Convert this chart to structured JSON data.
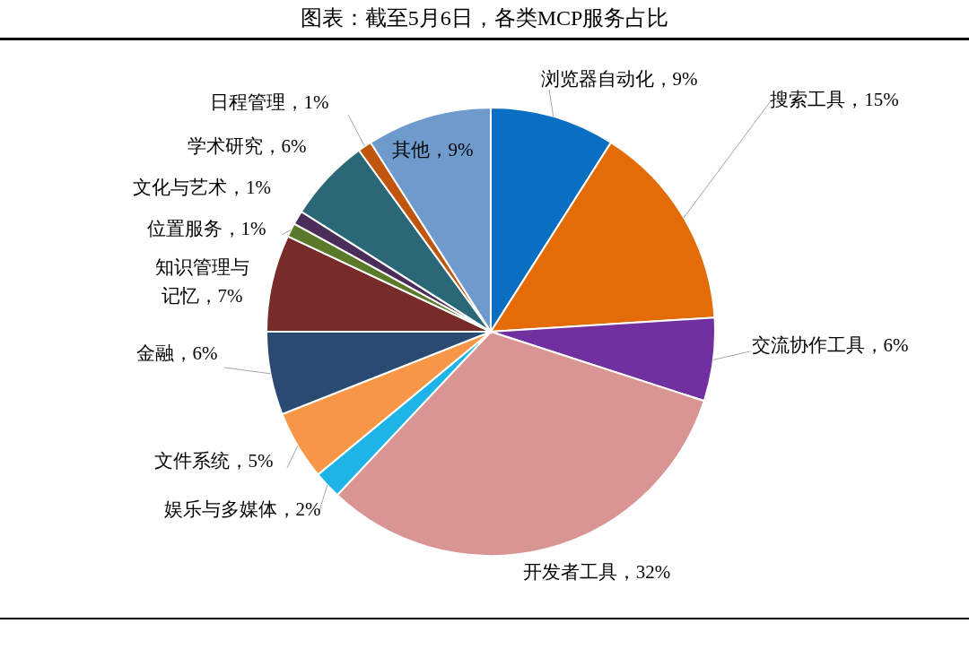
{
  "chart_data": {
    "type": "pie",
    "title": "图表：截至5月6日，各类MCP服务占比",
    "categories": [
      "浏览器自动化",
      "搜索工具",
      "交流协作工具",
      "开发者工具",
      "娱乐与多媒体",
      "文件系统",
      "金融",
      "知识管理与记忆",
      "位置服务",
      "文化与艺术",
      "学术研究",
      "日程管理",
      "其他"
    ],
    "values": [
      9,
      15,
      6,
      32,
      2,
      5,
      6,
      7,
      1,
      1,
      6,
      1,
      9
    ],
    "value_labels": [
      "9%",
      "15%",
      "6%",
      "32%",
      "2%",
      "5%",
      "6%",
      "7%",
      "1%",
      "1%",
      "6%",
      "1%",
      "9%"
    ],
    "colors": [
      "#0a6fc2",
      "#e36c09",
      "#7030a0",
      "#d99594",
      "#1fb4e8",
      "#f79646",
      "#2a4a72",
      "#772c2a",
      "#5a7a2a",
      "#4b2d5a",
      "#2a6878",
      "#c0560e",
      "#6f9bcc"
    ]
  }
}
